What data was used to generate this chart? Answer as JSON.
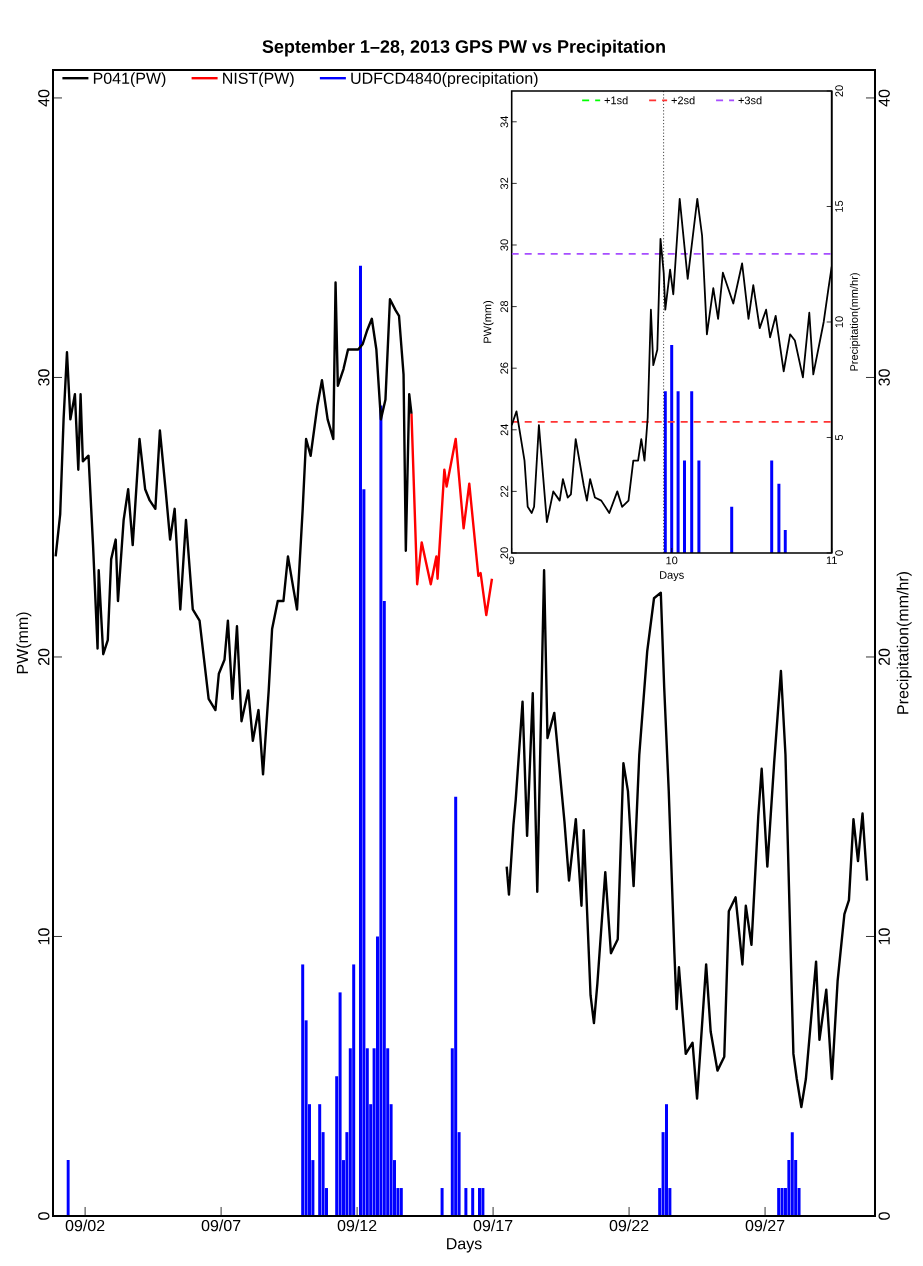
{
  "chart_data": [
    {
      "type": "line",
      "title": "September 1–28, 2013 GPS PW vs Precipitation",
      "xlabel": "Days",
      "ylabel": "PW(mm)",
      "y2label": "Precipitation(mm/hr)",
      "xlim": [
        "2013-08-31T19:40",
        "2013-10-01T01:00"
      ],
      "ylim": [
        0,
        41
      ],
      "y2lim": [
        0,
        41
      ],
      "xticks": [
        {
          "value": "2013-09-02",
          "label": "09/02"
        },
        {
          "value": "2013-09-07",
          "label": "09/07"
        },
        {
          "value": "2013-09-12",
          "label": "09/12"
        },
        {
          "value": "2013-09-17",
          "label": "09/17"
        },
        {
          "value": "2013-09-22",
          "label": "09/22"
        },
        {
          "value": "2013-09-27",
          "label": "09/27"
        }
      ],
      "yticks": [
        0,
        10,
        20,
        30,
        40
      ],
      "y2ticks": [
        0,
        10,
        20,
        30,
        40
      ],
      "legend": "top left",
      "series": [
        {
          "name": "P041(PW)",
          "color": "#000000",
          "x": [
            "2013-08-31T22:00",
            "2013-09-01T02:00",
            "2013-09-01T05:00",
            "2013-09-01T08:00",
            "2013-09-01T11:00",
            "2013-09-01T15:00",
            "2013-09-01T18:00",
            "2013-09-01T20:00",
            "2013-09-01T22:00",
            "2013-09-02T03:00",
            "2013-09-02T07:00",
            "2013-09-02T11:00",
            "2013-09-02T12:00",
            "2013-09-02T16:00",
            "2013-09-02T20:00",
            "2013-09-02T23:00",
            "2013-09-03T03:00",
            "2013-09-03T05:00",
            "2013-09-03T10:00",
            "2013-09-03T14:00",
            "2013-09-03T18:00",
            "2013-09-04T00:00",
            "2013-09-04T05:00",
            "2013-09-04T09:00",
            "2013-09-04T14:00",
            "2013-09-04T18:00",
            "2013-09-04T23:00",
            "2013-09-05T03:00",
            "2013-09-05T07:00",
            "2013-09-05T12:00",
            "2013-09-05T17:00",
            "2013-09-05T23:00",
            "2013-09-06T05:00",
            "2013-09-06T09:00",
            "2013-09-06T13:00",
            "2013-09-06T19:00",
            "2013-09-06T22:00",
            "2013-09-07T03:00",
            "2013-09-07T06:00",
            "2013-09-07T10:00",
            "2013-09-07T14:00",
            "2013-09-07T18:00",
            "2013-09-08T00:00",
            "2013-09-08T04:00",
            "2013-09-08T09:00",
            "2013-09-08T13:00",
            "2013-09-08T18:00",
            "2013-09-08T21:00",
            "2013-09-09T02:00",
            "2013-09-09T07:00",
            "2013-09-09T11:00",
            "2013-09-09T16:00",
            "2013-09-09T19:00",
            "2013-09-10T00:00",
            "2013-09-10T03:00",
            "2013-09-10T07:00",
            "2013-09-10T13:00",
            "2013-09-10T17:00",
            "2013-09-10T22:00",
            "2013-09-11T03:00",
            "2013-09-11T05:00",
            "2013-09-11T07:00",
            "2013-09-11T12:00",
            "2013-09-11T16:00",
            "2013-09-11T20:00",
            "2013-09-12T01:00",
            "2013-09-12T05:00",
            "2013-09-12T09:00",
            "2013-09-12T13:00",
            "2013-09-12T17:00",
            "2013-09-12T21:00",
            "2013-09-13T01:00",
            "2013-09-13T05:00",
            "2013-09-13T10:00",
            "2013-09-13T13:00",
            "2013-09-13T17:00",
            "2013-09-13T19:00",
            "2013-09-13T22:00",
            "2013-09-14T00:00",
            "2013-09-15T12:00",
            "2013-09-17T12:00",
            "2013-09-17T14:00",
            "2013-09-17T18:00",
            "2013-09-17T20:00",
            "2013-09-18T02:00",
            "2013-09-18T06:00",
            "2013-09-18T11:00",
            "2013-09-18T15:00",
            "2013-09-18T21:00",
            "2013-09-19T00:00",
            "2013-09-19T06:00",
            "2013-09-19T15:00",
            "2013-09-19T19:00",
            "2013-09-20T01:00",
            "2013-09-20T06:00",
            "2013-09-20T08:00",
            "2013-09-20T14:00",
            "2013-09-20T17:00",
            "2013-09-20T20:00",
            "2013-09-21T03:00",
            "2013-09-21T08:00",
            "2013-09-21T14:00",
            "2013-09-21T19:00",
            "2013-09-21T23:00",
            "2013-09-22T04:00",
            "2013-09-22T09:00",
            "2013-09-22T16:00",
            "2013-09-22T22:00",
            "2013-09-23T04:00",
            "2013-09-23T07:00",
            "2013-09-23T11:00",
            "2013-09-23T16:00",
            "2013-09-23T18:00",
            "2013-09-23T20:00",
            "2013-09-24T02:00",
            "2013-09-24T08:00",
            "2013-09-24T12:00",
            "2013-09-24T20:00",
            "2013-09-25T00:00",
            "2013-09-25T06:00",
            "2013-09-25T12:00",
            "2013-09-25T16:00",
            "2013-09-25T22:00",
            "2013-09-26T04:00",
            "2013-09-26T07:00",
            "2013-09-26T12:00",
            "2013-09-26T18:00",
            "2013-09-26T21:00",
            "2013-09-27T02:00",
            "2013-09-27T08:00",
            "2013-09-27T14:00",
            "2013-09-27T18:00",
            "2013-09-28T01:00",
            "2013-09-28T04:00",
            "2013-09-28T08:00",
            "2013-09-28T12:00",
            "2013-09-28T21:00",
            "2013-09-29T00:00",
            "2013-09-29T06:00",
            "2013-09-29T11:00",
            "2013-09-29T16:00",
            "2013-09-29T22:00",
            "2013-09-30T02:00",
            "2013-09-30T06:00",
            "2013-09-30T10:00",
            "2013-09-30T14:00",
            "2013-09-30T18:00"
          ],
          "values": [
            23.6,
            25.1,
            28.5,
            30.9,
            28.5,
            29.4,
            26.7,
            29.4,
            27.0,
            27.2,
            24.0,
            20.3,
            23.1,
            20.1,
            20.6,
            23.5,
            24.2,
            22.0,
            24.9,
            26.0,
            24.0,
            27.8,
            26.0,
            25.6,
            25.3,
            28.1,
            26.0,
            24.2,
            25.3,
            21.7,
            24.9,
            21.7,
            21.3,
            19.9,
            18.5,
            18.1,
            19.4,
            19.9,
            21.3,
            18.5,
            21.1,
            17.7,
            18.8,
            17.0,
            18.1,
            15.8,
            18.8,
            21.0,
            22.0,
            22.0,
            23.6,
            22.4,
            21.7,
            25.3,
            27.8,
            27.2,
            29.0,
            29.9,
            28.5,
            27.8,
            33.4,
            29.7,
            30.3,
            31.0,
            31.0,
            31.0,
            31.2,
            31.7,
            32.1,
            31.0,
            28.5,
            29.2,
            32.8,
            32.4,
            32.2,
            30.1,
            23.8,
            29.4,
            28.7,
            null,
            12.5,
            11.5,
            14.0,
            14.9,
            18.4,
            13.6,
            18.7,
            11.6,
            23.1,
            17.1,
            18.0,
            14.1,
            12.0,
            14.2,
            11.1,
            13.8,
            7.9,
            6.9,
            8.3,
            12.3,
            9.4,
            9.9,
            16.2,
            15.2,
            11.8,
            16.5,
            20.2,
            22.1,
            22.3,
            18.9,
            15.2,
            9.4,
            7.4,
            8.9,
            5.8,
            6.2,
            4.2,
            9.0,
            6.6,
            5.2,
            5.7,
            10.9,
            11.4,
            9.0,
            11.1,
            9.7,
            14.3,
            16.0,
            12.5,
            16.2,
            19.5,
            16.5,
            5.8,
            4.9,
            3.9,
            4.9,
            9.1,
            6.3,
            8.1,
            4.9,
            8.4,
            10.8,
            11.3,
            14.2,
            12.7,
            14.4,
            12.0
          ]
        },
        {
          "name": "NIST(PW)",
          "color": "#ff0000",
          "x": [
            "2013-09-14T00:00",
            "2013-09-14T05:00",
            "2013-09-14T09:00",
            "2013-09-14T17:00",
            "2013-09-14T22:00",
            "2013-09-14T23:00",
            "2013-09-15T05:00",
            "2013-09-15T07:00",
            "2013-09-15T15:00",
            "2013-09-15T22:00",
            "2013-09-16T03:00",
            "2013-09-16T11:00",
            "2013-09-16T13:00",
            "2013-09-16T18:00",
            "2013-09-16T23:00"
          ],
          "values": [
            28.7,
            22.6,
            24.1,
            22.6,
            23.6,
            22.8,
            26.7,
            26.1,
            27.8,
            24.6,
            26.2,
            22.9,
            23.0,
            21.5,
            22.8
          ]
        },
        {
          "name": "UDFCD4840(precipitation)",
          "color": "#0000ff",
          "type": "bar",
          "axis": "y2",
          "x": [
            "2013-09-01T09:00",
            "2013-09-10T00:00",
            "2013-09-10T03:00",
            "2013-09-10T06:00",
            "2013-09-10T09:00",
            "2013-09-10T15:00",
            "2013-09-10T18:00",
            "2013-09-10T21:00",
            "2013-09-11T06:00",
            "2013-09-11T09:00",
            "2013-09-11T12:00",
            "2013-09-11T15:00",
            "2013-09-11T18:00",
            "2013-09-11T21:00",
            "2013-09-12T03:00",
            "2013-09-12T06:00",
            "2013-09-12T09:00",
            "2013-09-12T12:00",
            "2013-09-12T15:00",
            "2013-09-12T18:00",
            "2013-09-12T21:00",
            "2013-09-13T00:00",
            "2013-09-13T03:00",
            "2013-09-13T06:00",
            "2013-09-13T09:00",
            "2013-09-13T12:00",
            "2013-09-13T15:00",
            "2013-09-15T03:00",
            "2013-09-15T12:00",
            "2013-09-15T15:00",
            "2013-09-15T18:00",
            "2013-09-16T00:00",
            "2013-09-16T06:00",
            "2013-09-16T12:00",
            "2013-09-16T15:00",
            "2013-09-23T03:00",
            "2013-09-23T06:00",
            "2013-09-23T09:00",
            "2013-09-23T12:00",
            "2013-09-27T12:00",
            "2013-09-27T15:00",
            "2013-09-27T18:00",
            "2013-09-27T21:00",
            "2013-09-28T00:00",
            "2013-09-28T03:00",
            "2013-09-28T06:00"
          ],
          "values": [
            2,
            9,
            7,
            4,
            2,
            4,
            3,
            1,
            5,
            8,
            2,
            3,
            6,
            9,
            34,
            26,
            6,
            4,
            6,
            10,
            29,
            22,
            6,
            4,
            2,
            1,
            1,
            1,
            6,
            15,
            3,
            1,
            1,
            1,
            1,
            1,
            3,
            4,
            1,
            1,
            1,
            1,
            2,
            3,
            2,
            1
          ]
        }
      ]
    },
    {
      "type": "line",
      "xlabel": "Days",
      "ylabel": "PW(mm)",
      "y2label": "Precipitation(mm/hr)",
      "xlim": [
        9,
        11
      ],
      "ylim": [
        20,
        35
      ],
      "y2lim": [
        0,
        20
      ],
      "xticks": [
        9,
        10,
        11
      ],
      "yticks": [
        20,
        22,
        24,
        26,
        28,
        30,
        32,
        34
      ],
      "y2ticks": [
        0,
        5,
        10,
        15,
        20
      ],
      "legend": "top",
      "ref_lines": [
        {
          "axis": "x",
          "value": 9.95,
          "color": "#000000",
          "line_style": "dotted"
        }
      ],
      "series": [
        {
          "name": "+1sd",
          "color": "#00ff00",
          "line_style": "dashed"
        },
        {
          "name": "+2sd",
          "color": "#ff3333",
          "line_style": "dashed",
          "x": [
            9,
            11
          ],
          "values": [
            24.26,
            24.26
          ]
        },
        {
          "name": "+3sd",
          "color": "#a64dff",
          "line_style": "dashed",
          "x": [
            9,
            11
          ],
          "values": [
            29.71,
            29.71
          ]
        },
        {
          "color": "#000000",
          "x": [
            9.0,
            9.03,
            9.08,
            9.1,
            9.125,
            9.14,
            9.17,
            9.22,
            9.26,
            9.3,
            9.32,
            9.35,
            9.37,
            9.4,
            9.45,
            9.47,
            9.49,
            9.52,
            9.56,
            9.61,
            9.66,
            9.69,
            9.73,
            9.76,
            9.79,
            9.81,
            9.83,
            9.85,
            9.87,
            9.885,
            9.91,
            9.93,
            9.95,
            9.96,
            9.99,
            10.01,
            10.05,
            10.1,
            10.16,
            10.19,
            10.22,
            10.26,
            10.29,
            10.32,
            10.385,
            10.44,
            10.48,
            10.51,
            10.55,
            10.59,
            10.615,
            10.65,
            10.7,
            10.74,
            10.77,
            10.82,
            10.86,
            10.885,
            10.95,
            10.98,
            11.0
          ],
          "values": [
            24.15,
            24.6,
            23.0,
            21.5,
            21.3,
            21.5,
            24.15,
            21.0,
            22.0,
            21.7,
            22.4,
            21.8,
            21.9,
            23.7,
            22.2,
            21.7,
            22.4,
            21.8,
            21.7,
            21.3,
            22.0,
            21.5,
            21.7,
            23.0,
            23.0,
            23.7,
            23.0,
            24.4,
            27.9,
            26.1,
            26.6,
            30.2,
            29.1,
            27.9,
            29.2,
            28.4,
            31.5,
            28.9,
            31.5,
            30.3,
            27.1,
            28.6,
            27.6,
            29.1,
            28.1,
            29.4,
            27.6,
            28.7,
            27.3,
            27.9,
            27.0,
            27.7,
            25.9,
            27.1,
            26.9,
            25.7,
            27.8,
            25.8,
            27.5,
            28.6,
            29.3
          ]
        },
        {
          "color": "#0000ff",
          "type": "bar",
          "axis": "y2",
          "x": [
            9.96,
            10.0,
            10.04,
            10.08,
            10.125,
            10.17,
            10.375,
            10.625,
            10.67,
            10.71
          ],
          "values": [
            7,
            9,
            7,
            4,
            7,
            4,
            2,
            4,
            3,
            1
          ]
        }
      ]
    }
  ]
}
